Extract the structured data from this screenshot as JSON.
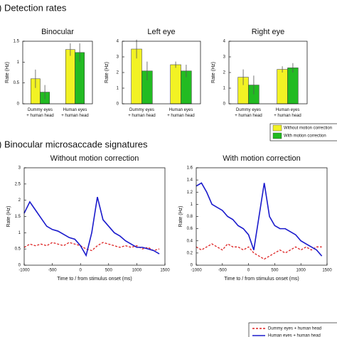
{
  "sections": [
    ") Detection rates",
    ") Binocular microsaccade signatures"
  ],
  "chart_data": [
    {
      "type": "bar",
      "title": "Binocular",
      "ylabel": "Rate (Hz)",
      "categories": [
        "Dummy eyes\n+ human head",
        "Human eyes\n+ human head"
      ],
      "series": [
        {
          "name": "Without motion correction",
          "color": "#f2f224",
          "values": [
            0.6,
            1.3
          ],
          "errors": [
            0.22,
            0.15
          ]
        },
        {
          "name": "With motion correction",
          "color": "#22bb22",
          "values": [
            0.28,
            1.23
          ],
          "errors": [
            0.17,
            0.22
          ]
        }
      ],
      "ylim": [
        0,
        1.5
      ],
      "yticks": [
        0,
        0.5,
        1,
        1.5
      ]
    },
    {
      "type": "bar",
      "title": "Left eye",
      "ylabel": "Rate (Hz)",
      "categories": [
        "Dummy eyes\n+ human head",
        "Human eyes\n+ human head"
      ],
      "series": [
        {
          "name": "Without motion correction",
          "color": "#f2f224",
          "values": [
            3.5,
            2.5
          ],
          "errors": [
            0.6,
            0.2
          ]
        },
        {
          "name": "With motion correction",
          "color": "#22bb22",
          "values": [
            2.1,
            2.1
          ],
          "errors": [
            0.6,
            0.4
          ]
        }
      ],
      "ylim": [
        0,
        4
      ],
      "yticks": [
        0,
        1,
        2,
        3,
        4
      ]
    },
    {
      "type": "bar",
      "title": "Right eye",
      "ylabel": "Rate (Hz)",
      "categories": [
        "Dummy eyes\n+ human head",
        "Human eyes\n+ human head"
      ],
      "series": [
        {
          "name": "Without motion correction",
          "color": "#f2f224",
          "values": [
            1.7,
            2.2
          ],
          "errors": [
            0.5,
            0.2
          ]
        },
        {
          "name": "With motion correction",
          "color": "#22bb22",
          "values": [
            1.2,
            2.3
          ],
          "errors": [
            0.6,
            0.3
          ]
        }
      ],
      "ylim": [
        0,
        4
      ],
      "yticks": [
        0,
        1,
        2,
        3,
        4
      ]
    },
    {
      "type": "line",
      "title": "Without motion correction",
      "ylabel": "Rate (Hz)",
      "xlabel": "Time to / from stimulus onset (ms)",
      "x": [
        -1000,
        -900,
        -800,
        -700,
        -600,
        -500,
        -400,
        -300,
        -200,
        -100,
        0,
        100,
        200,
        300,
        400,
        500,
        600,
        700,
        800,
        900,
        1000,
        1100,
        1200,
        1300,
        1400
      ],
      "series": [
        {
          "name": "Dummy eyes + human head",
          "color": "#dd2222",
          "dashed": true,
          "values": [
            0.55,
            0.65,
            0.6,
            0.65,
            0.6,
            0.7,
            0.65,
            0.6,
            0.7,
            0.65,
            0.6,
            0.5,
            0.45,
            0.6,
            0.7,
            0.65,
            0.6,
            0.55,
            0.6,
            0.55,
            0.6,
            0.5,
            0.55,
            0.45,
            0.5
          ]
        },
        {
          "name": "Human eyes + human head",
          "color": "#1a1acc",
          "dashed": false,
          "values": [
            1.6,
            1.95,
            1.7,
            1.45,
            1.2,
            1.1,
            1.05,
            0.95,
            0.85,
            0.8,
            0.6,
            0.3,
            1.0,
            2.1,
            1.4,
            1.2,
            1.0,
            0.9,
            0.75,
            0.65,
            0.55,
            0.55,
            0.5,
            0.45,
            0.35
          ]
        }
      ],
      "xlim": [
        -1000,
        1500
      ],
      "xticks": [
        -1000,
        -500,
        0,
        500,
        1000,
        1500
      ],
      "ylim": [
        0,
        3
      ],
      "yticks": [
        0,
        0.5,
        1,
        1.5,
        2,
        2.5,
        3
      ]
    },
    {
      "type": "line",
      "title": "With motion correction",
      "ylabel": "Rate (Hz)",
      "xlabel": "Time to / from stimulus onset (ms)",
      "x": [
        -1000,
        -900,
        -800,
        -700,
        -600,
        -500,
        -400,
        -300,
        -200,
        -100,
        0,
        100,
        200,
        300,
        400,
        500,
        600,
        700,
        800,
        900,
        1000,
        1100,
        1200,
        1300,
        1400
      ],
      "series": [
        {
          "name": "Dummy eyes + human head",
          "color": "#dd2222",
          "dashed": true,
          "values": [
            0.3,
            0.25,
            0.3,
            0.35,
            0.3,
            0.25,
            0.35,
            0.3,
            0.3,
            0.25,
            0.3,
            0.2,
            0.15,
            0.1,
            0.15,
            0.2,
            0.25,
            0.2,
            0.25,
            0.3,
            0.25,
            0.3,
            0.25,
            0.3,
            0.3
          ]
        },
        {
          "name": "Human eyes + human head",
          "color": "#1a1acc",
          "dashed": false,
          "values": [
            1.3,
            1.35,
            1.2,
            1.0,
            0.95,
            0.9,
            0.8,
            0.75,
            0.65,
            0.6,
            0.5,
            0.25,
            0.8,
            1.35,
            0.8,
            0.65,
            0.6,
            0.6,
            0.55,
            0.5,
            0.4,
            0.35,
            0.3,
            0.25,
            0.15
          ]
        }
      ],
      "xlim": [
        -1000,
        1500
      ],
      "xticks": [
        -1000,
        -500,
        0,
        500,
        1000,
        1500
      ],
      "ylim": [
        0,
        1.6
      ],
      "yticks": [
        0,
        0.2,
        0.4,
        0.6,
        0.8,
        1,
        1.2,
        1.4,
        1.6
      ]
    }
  ]
}
